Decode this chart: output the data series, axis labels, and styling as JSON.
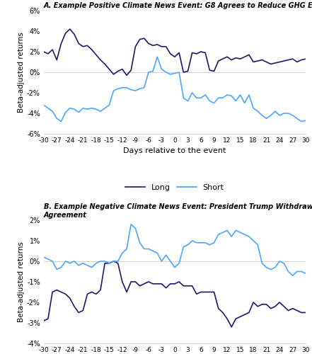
{
  "title_a": "A. Example Positive Climate News Event: G8 Agrees to Reduce GHG Emissions by 80% by 2050",
  "title_b": "B. Example Negative Climate News Event: President Trump Withdraws the U.S. from Paris\nAgreement",
  "xlabel": "Days relative to the event",
  "ylabel": "Beta-adjusted returns",
  "x_ticks": [
    -30,
    -27,
    -24,
    -21,
    -18,
    -15,
    -12,
    -9,
    -6,
    -3,
    0,
    3,
    6,
    9,
    12,
    15,
    18,
    21,
    24,
    27,
    30
  ],
  "long_color": "#1a1a6e",
  "short_color": "#4da6ff",
  "legend_long": "Long",
  "legend_short": "Short",
  "panel_a": {
    "long": [
      2.0,
      1.8,
      2.2,
      1.2,
      2.8,
      3.8,
      4.2,
      3.7,
      2.8,
      2.5,
      2.6,
      2.2,
      1.7,
      1.2,
      0.8,
      0.3,
      -0.2,
      0.1,
      0.3,
      -0.3,
      0.2,
      2.5,
      3.2,
      3.3,
      2.8,
      2.6,
      2.7,
      2.5,
      2.5,
      1.8,
      1.5,
      1.9,
      0.0,
      0.1,
      1.9,
      1.8,
      2.0,
      1.9,
      0.2,
      0.1,
      1.1,
      1.3,
      1.5,
      1.2,
      1.4,
      1.3,
      1.5,
      1.7,
      1.0,
      1.1,
      1.2,
      1.0,
      0.8,
      0.9,
      1.0,
      1.1,
      1.2,
      1.3,
      1.0,
      1.2,
      1.3
    ],
    "short": [
      -3.2,
      -3.5,
      -3.8,
      -4.5,
      -4.8,
      -3.9,
      -3.5,
      -3.6,
      -3.9,
      -3.5,
      -3.6,
      -3.5,
      -3.6,
      -3.8,
      -3.5,
      -3.2,
      -1.8,
      -1.6,
      -1.5,
      -1.5,
      -1.7,
      -1.8,
      -1.6,
      -1.5,
      0.0,
      0.1,
      1.5,
      0.3,
      0.0,
      -0.2,
      -0.1,
      0.0,
      -2.5,
      -2.8,
      -2.0,
      -2.5,
      -2.5,
      -2.2,
      -2.8,
      -3.0,
      -2.5,
      -2.5,
      -2.2,
      -2.3,
      -2.8,
      -2.2,
      -3.0,
      -2.2,
      -3.5,
      -3.8,
      -4.2,
      -4.5,
      -4.2,
      -3.8,
      -4.2,
      -4.0,
      -4.0,
      -4.2,
      -4.5,
      -4.8,
      -4.7
    ]
  },
  "panel_b": {
    "long": [
      -2.9,
      -2.8,
      -1.5,
      -1.4,
      -1.5,
      -1.6,
      -1.8,
      -2.2,
      -2.5,
      -2.4,
      -1.6,
      -1.5,
      -1.6,
      -1.4,
      -0.1,
      -0.1,
      0.0,
      -0.1,
      -1.0,
      -1.5,
      -1.0,
      -1.0,
      -1.2,
      -1.1,
      -1.0,
      -1.1,
      -1.1,
      -1.1,
      -1.3,
      -1.1,
      -1.1,
      -1.0,
      -1.2,
      -1.2,
      -1.2,
      -1.6,
      -1.5,
      -1.5,
      -1.5,
      -1.5,
      -2.3,
      -2.5,
      -2.8,
      -3.2,
      -2.8,
      -2.7,
      -2.6,
      -2.5,
      -2.0,
      -2.2,
      -2.1,
      -2.1,
      -2.3,
      -2.2,
      -2.0,
      -2.2,
      -2.4,
      -2.3,
      -2.4,
      -2.5,
      -2.5
    ],
    "short": [
      0.2,
      0.1,
      0.0,
      -0.4,
      -0.3,
      0.0,
      -0.1,
      0.0,
      -0.2,
      -0.1,
      -0.2,
      -0.3,
      -0.1,
      0.0,
      0.0,
      -0.1,
      0.0,
      0.0,
      0.4,
      0.6,
      1.8,
      1.6,
      0.9,
      0.6,
      0.6,
      0.5,
      0.4,
      0.0,
      0.3,
      0.0,
      -0.3,
      -0.1,
      0.7,
      0.8,
      1.0,
      0.9,
      0.9,
      0.9,
      0.8,
      0.9,
      1.3,
      1.4,
      1.5,
      1.2,
      1.5,
      1.4,
      1.3,
      1.2,
      1.0,
      0.8,
      -0.1,
      -0.3,
      -0.4,
      -0.3,
      0.0,
      -0.1,
      -0.5,
      -0.7,
      -0.5,
      -0.5,
      -0.6
    ]
  },
  "ylim_a": [
    -6,
    6
  ],
  "ylim_b": [
    -4,
    2
  ],
  "yticks_a": [
    -6,
    -4,
    -2,
    0,
    2,
    4,
    6
  ],
  "yticks_b": [
    -4,
    -3,
    -2,
    -1,
    0,
    1,
    2
  ]
}
